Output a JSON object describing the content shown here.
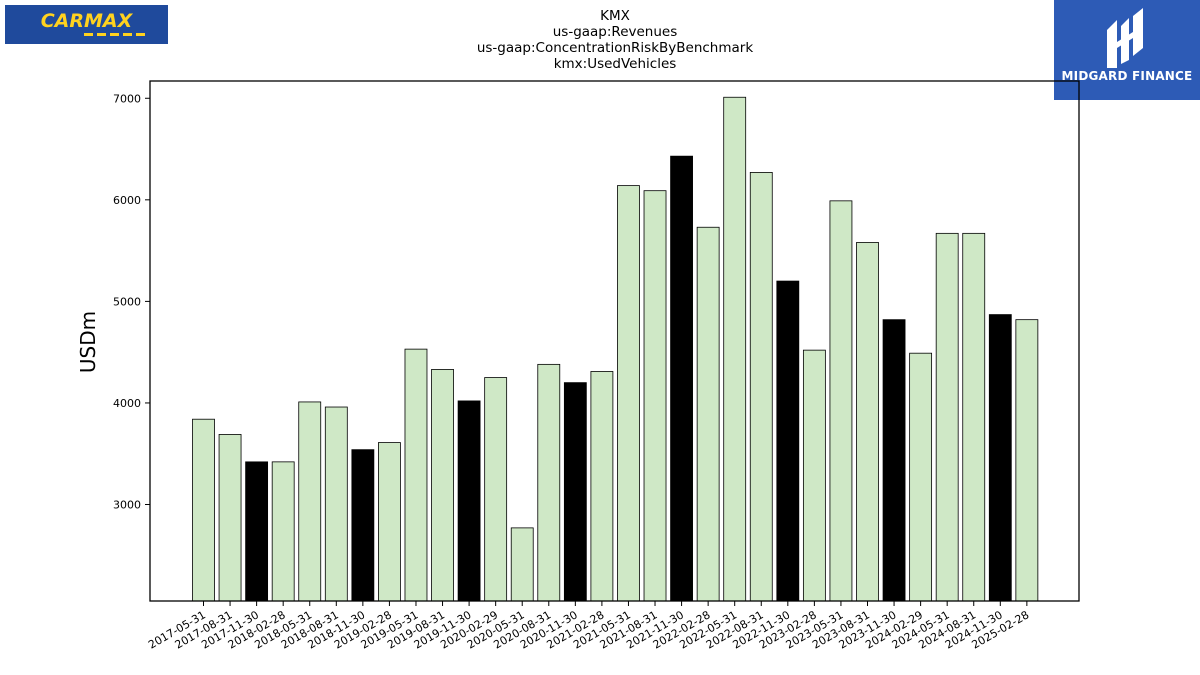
{
  "logos": {
    "left_text": "CARMAX",
    "right_text": "MIDGARD FINANCE"
  },
  "chart_data": {
    "type": "bar",
    "title": [
      "KMX",
      "us-gaap:Revenues",
      "us-gaap:ConcentrationRiskByBenchmark",
      "kmx:UsedVehicles"
    ],
    "xlabel": "",
    "ylabel": "USDm",
    "ylim": [
      2050,
      7170
    ],
    "yticks": [
      3000,
      4000,
      5000,
      6000,
      7000
    ],
    "grid": false,
    "colors": {
      "default": "#cfe8c6",
      "highlight": "#000000",
      "edge": "#000000"
    },
    "categories": [
      "2017-05-31",
      "2017-08-31",
      "2017-11-30",
      "2018-02-28",
      "2018-05-31",
      "2018-08-31",
      "2018-11-30",
      "2019-02-28",
      "2019-05-31",
      "2019-08-31",
      "2019-11-30",
      "2020-02-29",
      "2020-05-31",
      "2020-08-31",
      "2020-11-30",
      "2021-02-28",
      "2021-05-31",
      "2021-08-31",
      "2021-11-30",
      "2022-02-28",
      "2022-05-31",
      "2022-08-31",
      "2022-11-30",
      "2023-02-28",
      "2023-05-31",
      "2023-08-31",
      "2023-11-30",
      "2024-02-29",
      "2024-05-31",
      "2024-08-31",
      "2024-11-30",
      "2025-02-28"
    ],
    "values": [
      3840,
      3690,
      3420,
      3420,
      4010,
      3960,
      3540,
      3610,
      4530,
      4330,
      4020,
      4250,
      2770,
      4380,
      4200,
      4310,
      6140,
      6090,
      6430,
      5730,
      7010,
      6270,
      5200,
      4520,
      5990,
      5580,
      4820,
      4490,
      5670,
      5670,
      4870,
      4820
    ],
    "highlight": [
      false,
      false,
      true,
      false,
      false,
      false,
      true,
      false,
      false,
      false,
      true,
      false,
      false,
      false,
      true,
      false,
      false,
      false,
      true,
      false,
      false,
      false,
      true,
      false,
      false,
      false,
      true,
      false,
      false,
      false,
      true,
      false
    ]
  }
}
